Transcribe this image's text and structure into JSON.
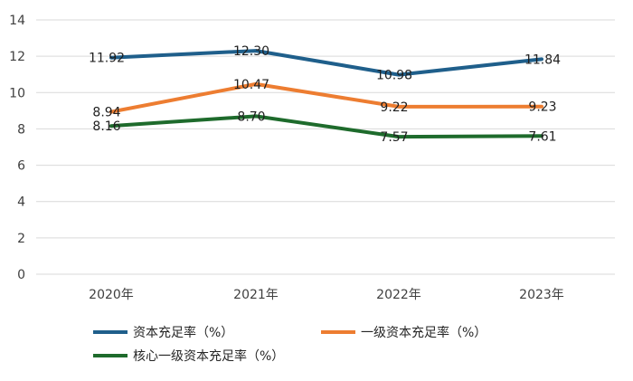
{
  "chart_data": {
    "type": "line",
    "categories": [
      "2020年",
      "2021年",
      "2022年",
      "2023年"
    ],
    "ylim": [
      0,
      14
    ],
    "yticks": [
      0,
      2,
      4,
      6,
      8,
      10,
      12,
      14
    ],
    "grid": true,
    "legend_position": "bottom",
    "series": [
      {
        "name": "资本充足率（%）",
        "color": "#1f5f8b",
        "values": [
          11.92,
          12.3,
          10.98,
          11.84
        ],
        "labels": [
          "11.92",
          "12.30",
          "10.98",
          "11.84"
        ]
      },
      {
        "name": "一级资本充足率（%）",
        "color": "#ed7d31",
        "values": [
          8.94,
          10.47,
          9.22,
          9.23
        ],
        "labels": [
          "8.94",
          "10.47",
          "9.22",
          "9.23"
        ]
      },
      {
        "name": "核心一级资本充足率（%）",
        "color": "#1e6b2c",
        "values": [
          8.16,
          8.7,
          7.57,
          7.61
        ],
        "labels": [
          "8.16",
          "8.70",
          "7.57",
          "7.61"
        ]
      }
    ]
  }
}
